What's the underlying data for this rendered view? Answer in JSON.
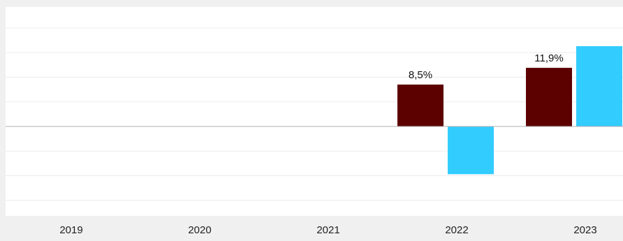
{
  "chart_data": {
    "type": "bar",
    "categories": [
      "2019",
      "2020",
      "2021",
      "2022",
      "2023"
    ],
    "series": [
      {
        "color": "#5c0000",
        "values": [
          null,
          null,
          null,
          8.5,
          11.9
        ],
        "labels": [
          "",
          "",
          "",
          "8,5%",
          "11,9%"
        ]
      },
      {
        "color": "#33ccff",
        "values": [
          null,
          null,
          null,
          -9.7,
          16.3
        ],
        "labels": [
          "",
          "",
          "",
          "",
          ""
        ]
      }
    ],
    "ylim": [
      -20,
      25
    ],
    "grid": true,
    "legend": "top"
  }
}
